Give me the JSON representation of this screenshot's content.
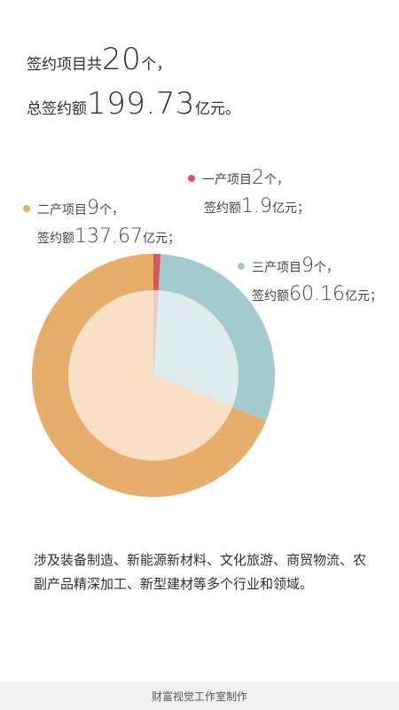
{
  "headline": {
    "line1_prefix": "签约项目共",
    "line1_value": "20",
    "line1_suffix": "个，",
    "line2_prefix": "总签约额",
    "line2_value": "199.73",
    "line2_suffix": "亿元。"
  },
  "legend": [
    {
      "industry": "一产项目",
      "count": "2",
      "count_unit": "个，",
      "amount_prefix": "签约额",
      "amount": "1.9",
      "amount_unit": "亿元；"
    },
    {
      "industry": "二产项目",
      "count": "9",
      "count_unit": "个，",
      "amount_prefix": "签约额",
      "amount": "137.67",
      "amount_unit": "亿元；"
    },
    {
      "industry": "三产项目",
      "count": "9",
      "count_unit": "个，",
      "amount_prefix": "签约额",
      "amount": "60.16",
      "amount_unit": "亿元；"
    }
  ],
  "colors": {
    "primary": "#d9545e",
    "secondary": "#e6ae6a",
    "tertiary": "#a3cbce",
    "secondary_inner": "#f8dfc6",
    "tertiary_inner": "#dfecee",
    "primary_inner": "#f2c6c8"
  },
  "chart_data": {
    "type": "pie",
    "categories": [
      "一产项目",
      "二产项目",
      "三产项目"
    ],
    "values": [
      1.9,
      137.67,
      60.16
    ],
    "counts": [
      2,
      9,
      9
    ],
    "unit": "亿元"
  },
  "description": "涉及装备制造、新能源新材料、文化旅游、商贸物流、农副产品精深加工、新型建材等多个行业和领域。",
  "footer": "财富视觉工作室制作"
}
